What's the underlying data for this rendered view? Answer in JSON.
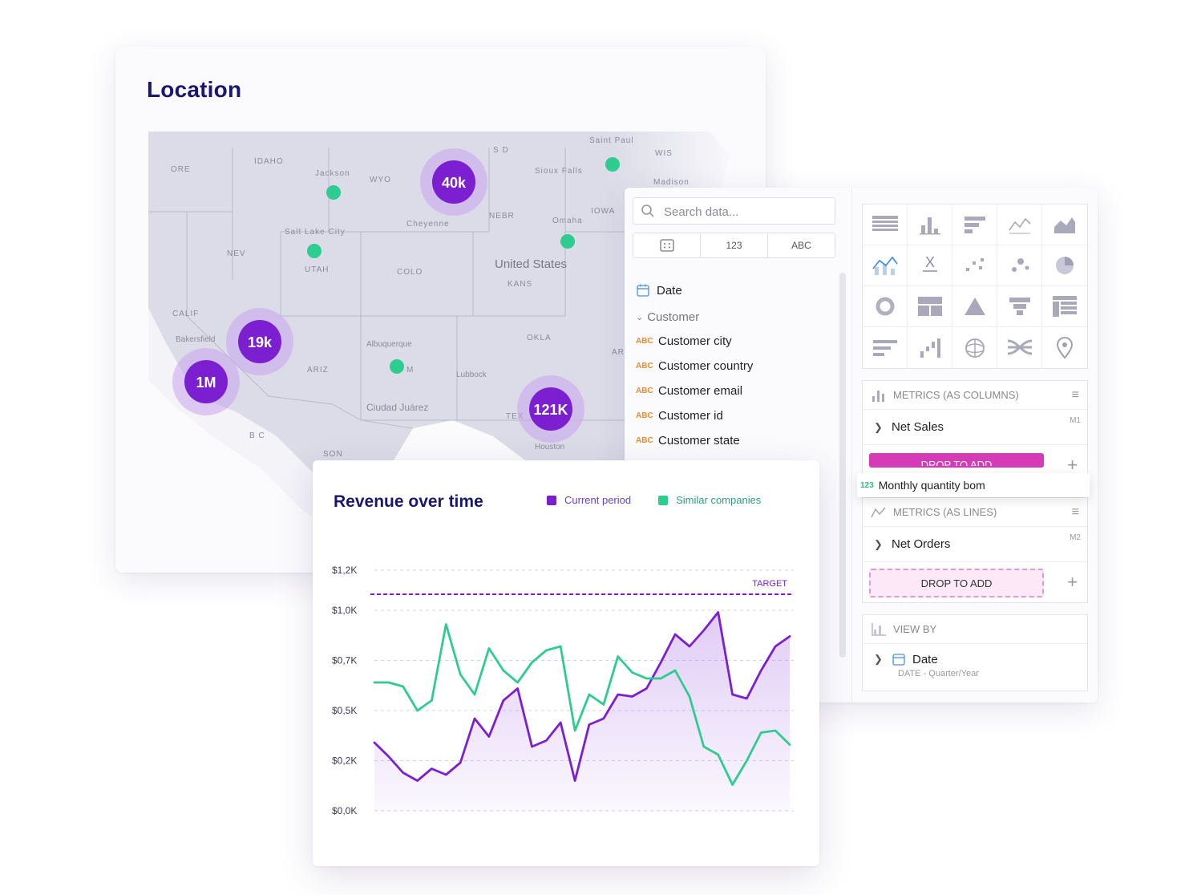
{
  "location": {
    "title": "Location",
    "map_labels": [
      "ORE",
      "IDAHO",
      "Jackson",
      "WYO",
      "S D",
      "Saint Paul",
      "WIS",
      "Sioux Falls",
      "Madison",
      "IOWA",
      "NEBR",
      "Omaha",
      "Cheyenne",
      "Salt Lake City",
      "NEV",
      "UTAH",
      "COLO",
      "United States",
      "KANS",
      "CALIF",
      "Bakersfield",
      "ARIZ",
      "Albuquerque",
      "M",
      "OKLA",
      "AR",
      "Lubbock",
      "Ciudad Juárez",
      "TEX",
      "Houston",
      "B C",
      "SON"
    ],
    "clusters": [
      {
        "label": "40k"
      },
      {
        "label": "19k"
      },
      {
        "label": "1M"
      },
      {
        "label": "121K"
      }
    ]
  },
  "data_panel": {
    "search_placeholder": "Search data...",
    "type_tabs": [
      "123",
      "ABC"
    ],
    "date_label": "Date",
    "group_label": "Customer",
    "abc_tag": "ABC",
    "fields": [
      "Customer city",
      "Customer country",
      "Customer email",
      "Customer id",
      "Customer state"
    ],
    "metrics_columns": {
      "header": "METRICS (AS COLUMNS)",
      "item": "Net Sales",
      "tag": "M1",
      "drop_label": "DROP TO ADD"
    },
    "drag_chip": {
      "tag": "123",
      "label": "Monthly quantity bom"
    },
    "metrics_lines": {
      "header": "METRICS (AS LINES)",
      "item": "Net Orders",
      "tag": "M2",
      "drop_label": "DROP TO ADD"
    },
    "view_by": {
      "header": "VIEW BY",
      "item": "Date",
      "sub": "DATE - Quarter/Year"
    }
  },
  "revenue": {
    "title": "Revenue over time",
    "legend": [
      {
        "name": "Current period",
        "color": "#7b1fd0"
      },
      {
        "name": "Similar companies",
        "color": "#2ecc8f"
      }
    ]
  },
  "chart_data": {
    "type": "line",
    "title": "Revenue over time",
    "y_tick_labels": [
      "$1,2K",
      "$1,0K",
      "$0,7K",
      "$0,5K",
      "$0,2K",
      "$0,0K"
    ],
    "y_ticks": [
      1.2,
      1.0,
      0.75,
      0.5,
      0.25,
      0.0
    ],
    "ylim": [
      0,
      1.2
    ],
    "target": {
      "label": "TARGET",
      "value": 1.08
    },
    "grid": true,
    "legend_position": "top-right",
    "series": [
      {
        "name": "Current period",
        "color": "#7b1fd0",
        "fill": true,
        "values": [
          0.34,
          0.27,
          0.19,
          0.15,
          0.21,
          0.18,
          0.24,
          0.46,
          0.37,
          0.55,
          0.61,
          0.32,
          0.35,
          0.44,
          0.15,
          0.43,
          0.46,
          0.58,
          0.57,
          0.61,
          0.74,
          0.88,
          0.82,
          0.9,
          0.99,
          0.58,
          0.56,
          0.7,
          0.82,
          0.87
        ]
      },
      {
        "name": "Similar companies",
        "color": "#2ecc8f",
        "fill": false,
        "values": [
          0.64,
          0.64,
          0.62,
          0.5,
          0.55,
          0.93,
          0.68,
          0.58,
          0.81,
          0.7,
          0.64,
          0.74,
          0.8,
          0.82,
          0.4,
          0.58,
          0.53,
          0.77,
          0.69,
          0.66,
          0.66,
          0.7,
          0.57,
          0.32,
          0.28,
          0.13,
          0.25,
          0.39,
          0.4,
          0.33
        ]
      }
    ]
  }
}
